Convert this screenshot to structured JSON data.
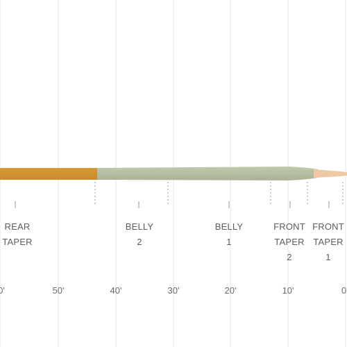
{
  "diagram": {
    "colors": {
      "rear": "#c98a28",
      "rear_light": "#d89b3a",
      "belly": "#a9b296",
      "belly_light": "#c0c8ae",
      "tip": "#efc9a4",
      "grid": "#e6e6e6",
      "divider": "#9a9a9a"
    },
    "sections": [
      {
        "id": "rear-taper",
        "lines": [
          "REAR",
          "TAPER"
        ]
      },
      {
        "id": "belly-2",
        "lines": [
          "BELLY",
          "2"
        ]
      },
      {
        "id": "belly-1",
        "lines": [
          "BELLY",
          "1"
        ]
      },
      {
        "id": "front-taper-2",
        "lines": [
          "FRONT",
          "TAPER",
          "2"
        ]
      },
      {
        "id": "front-taper-1",
        "lines": [
          "FRONT",
          "TAPER",
          "1"
        ]
      }
    ],
    "distance_labels": [
      "0'",
      "50'",
      "40'",
      "30'",
      "20'",
      "10'",
      "0'"
    ]
  }
}
